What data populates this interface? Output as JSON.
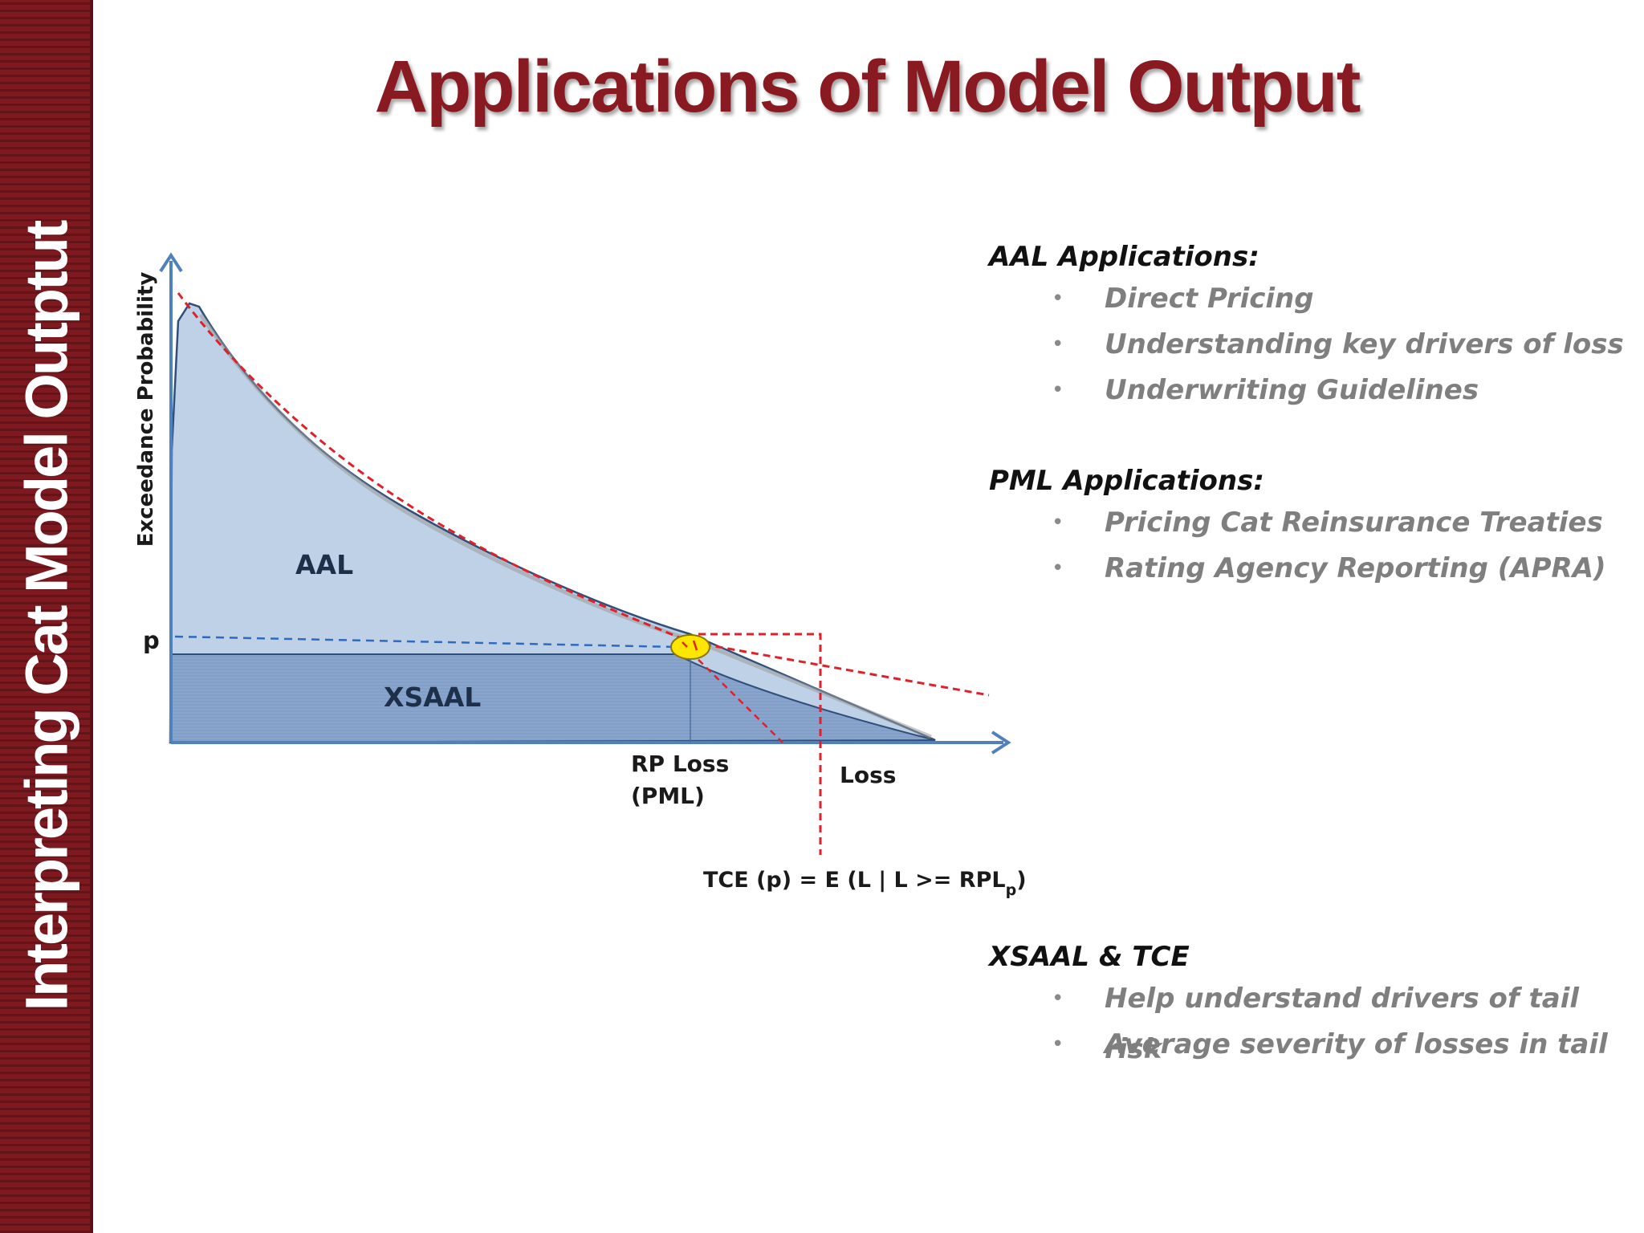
{
  "sidebar": {
    "title": "Interpreting Cat Model Outptut"
  },
  "page": {
    "title": "Applications of Model Output"
  },
  "diagram": {
    "y_axis_label": "Exceedance Probability",
    "p_label": "p",
    "aal_label": "AAL",
    "xsaal_label": "XSAAL",
    "rp_loss_line1": "RP Loss",
    "rp_loss_line2": "(PML)",
    "loss_label": "Loss",
    "tce_formula": "TCE (p) = E (L | L >= RPL",
    "tce_subscript": "p",
    "tce_close": ")",
    "colors": {
      "axis": "#4f81bd",
      "aal_fill": "#b8cce4",
      "xsaal_fill": "#8aa7cf",
      "curve_outline": "#2f4f7a",
      "dashed_red": "#e0202a",
      "highlight": "#ffe600"
    }
  },
  "applications": {
    "sections": [
      {
        "title": "AAL Applications:",
        "items": [
          "Direct Pricing",
          "Understanding key drivers of loss",
          "Underwriting Guidelines"
        ]
      },
      {
        "title": "PML Applications:",
        "items": [
          "Pricing Cat Reinsurance Treaties",
          "Rating Agency Reporting (APRA)"
        ]
      },
      {
        "title": "XSAAL & TCE",
        "items": [
          "Help understand drivers of tail risk",
          "Average severity of losses in tail"
        ]
      }
    ],
    "bullet_glyph": "•"
  }
}
